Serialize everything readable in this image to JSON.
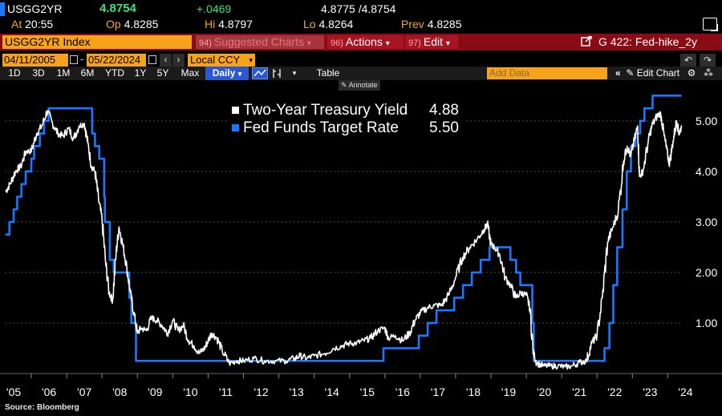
{
  "quote": {
    "ticker": "USGG2YR",
    "last": "4.8754",
    "change": "+.0469",
    "bid_ask": "4.8775 /4.8754",
    "time_label": "At",
    "time": "20:55",
    "open_label": "Op",
    "open": "4.8285",
    "high_label": "Hi",
    "high": "4.8797",
    "low_label": "Lo",
    "low": "4.8264",
    "prev_label": "Prev",
    "prev": "4.8285"
  },
  "command_bar": {
    "security": "USGG2YR Index",
    "suggested_num": "94)",
    "suggested": "Suggested Charts",
    "actions_num": "96)",
    "actions": "Actions",
    "edit_num": "97)",
    "edit": "Edit",
    "chart_name": "G 422: Fed-hike_2y"
  },
  "date_bar": {
    "start_date": "04/11/2005",
    "end_date": "05/22/2024",
    "currency": "Local CCY"
  },
  "period_bar": {
    "periods": [
      "1D",
      "3D",
      "1M",
      "6M",
      "YTD",
      "1Y",
      "5Y",
      "Max"
    ],
    "frequency": "Daily",
    "table_label": "Table",
    "add_data_placeholder": "Add Data",
    "edit_chart_label": "Edit Chart",
    "annotate_label": "Annotate"
  },
  "colors": {
    "yield_line": "#ffffff",
    "fed_funds_line": "#1a78ff",
    "accent_orange": "#f6a21a",
    "command_red": "#8b0b14",
    "up_green": "#3be37a"
  },
  "chart_data": {
    "type": "line",
    "title": "",
    "xlabel": "",
    "ylabel": "",
    "x_ticks": [
      "'05",
      "'06",
      "'07",
      "'08",
      "'09",
      "'10",
      "'11",
      "'12",
      "'13",
      "'14",
      "'15",
      "'16",
      "'17",
      "'18",
      "'19",
      "'20",
      "'21",
      "'22",
      "'23",
      "'24"
    ],
    "y_ticks": [
      "1.00",
      "2.00",
      "3.00",
      "4.00",
      "5.00"
    ],
    "ylim": [
      0.0,
      5.6
    ],
    "xlim": [
      2005.25,
      2024.4
    ],
    "grid": "horizontal-dashed",
    "legend_position": "top-center",
    "series": [
      {
        "name": "Two-Year Treasury Yield",
        "last_value": "4.88",
        "color": "#ffffff",
        "points": [
          [
            2005.27,
            3.6
          ],
          [
            2005.4,
            3.75
          ],
          [
            2005.55,
            4.0
          ],
          [
            2005.7,
            4.1
          ],
          [
            2005.85,
            4.4
          ],
          [
            2006.0,
            4.4
          ],
          [
            2006.15,
            4.75
          ],
          [
            2006.3,
            4.9
          ],
          [
            2006.45,
            5.2
          ],
          [
            2006.6,
            4.95
          ],
          [
            2006.75,
            4.75
          ],
          [
            2006.9,
            4.7
          ],
          [
            2007.05,
            4.85
          ],
          [
            2007.2,
            4.65
          ],
          [
            2007.35,
            4.9
          ],
          [
            2007.5,
            4.95
          ],
          [
            2007.6,
            4.55
          ],
          [
            2007.7,
            4.1
          ],
          [
            2007.8,
            4.0
          ],
          [
            2007.9,
            3.45
          ],
          [
            2008.0,
            3.05
          ],
          [
            2008.1,
            2.2
          ],
          [
            2008.2,
            1.6
          ],
          [
            2008.3,
            1.45
          ],
          [
            2008.4,
            2.4
          ],
          [
            2008.48,
            2.9
          ],
          [
            2008.6,
            2.5
          ],
          [
            2008.7,
            2.1
          ],
          [
            2008.8,
            1.6
          ],
          [
            2008.9,
            1.2
          ],
          [
            2009.0,
            0.8
          ],
          [
            2009.1,
            0.9
          ],
          [
            2009.25,
            0.85
          ],
          [
            2009.4,
            1.1
          ],
          [
            2009.55,
            1.05
          ],
          [
            2009.7,
            0.95
          ],
          [
            2009.85,
            0.8
          ],
          [
            2010.0,
            1.05
          ],
          [
            2010.15,
            0.85
          ],
          [
            2010.3,
            0.95
          ],
          [
            2010.45,
            0.65
          ],
          [
            2010.6,
            0.55
          ],
          [
            2010.75,
            0.4
          ],
          [
            2010.9,
            0.5
          ],
          [
            2011.0,
            0.65
          ],
          [
            2011.1,
            0.8
          ],
          [
            2011.25,
            0.7
          ],
          [
            2011.4,
            0.45
          ],
          [
            2011.6,
            0.2
          ],
          [
            2011.8,
            0.25
          ],
          [
            2012.0,
            0.25
          ],
          [
            2012.3,
            0.3
          ],
          [
            2012.6,
            0.25
          ],
          [
            2012.9,
            0.25
          ],
          [
            2013.2,
            0.25
          ],
          [
            2013.45,
            0.3
          ],
          [
            2013.6,
            0.35
          ],
          [
            2013.8,
            0.3
          ],
          [
            2014.0,
            0.35
          ],
          [
            2014.3,
            0.4
          ],
          [
            2014.55,
            0.5
          ],
          [
            2014.8,
            0.55
          ],
          [
            2015.0,
            0.6
          ],
          [
            2015.2,
            0.6
          ],
          [
            2015.4,
            0.65
          ],
          [
            2015.6,
            0.7
          ],
          [
            2015.8,
            0.85
          ],
          [
            2016.0,
            0.9
          ],
          [
            2016.1,
            0.7
          ],
          [
            2016.3,
            0.75
          ],
          [
            2016.5,
            0.65
          ],
          [
            2016.7,
            0.8
          ],
          [
            2016.85,
            1.05
          ],
          [
            2017.0,
            1.2
          ],
          [
            2017.2,
            1.3
          ],
          [
            2017.4,
            1.35
          ],
          [
            2017.6,
            1.35
          ],
          [
            2017.8,
            1.55
          ],
          [
            2018.0,
            1.9
          ],
          [
            2018.2,
            2.3
          ],
          [
            2018.4,
            2.5
          ],
          [
            2018.6,
            2.65
          ],
          [
            2018.8,
            2.85
          ],
          [
            2018.9,
            2.95
          ],
          [
            2019.0,
            2.55
          ],
          [
            2019.1,
            2.5
          ],
          [
            2019.25,
            2.35
          ],
          [
            2019.4,
            1.9
          ],
          [
            2019.55,
            1.75
          ],
          [
            2019.7,
            1.5
          ],
          [
            2019.85,
            1.6
          ],
          [
            2020.0,
            1.55
          ],
          [
            2020.1,
            1.3
          ],
          [
            2020.2,
            0.4
          ],
          [
            2020.3,
            0.2
          ],
          [
            2020.5,
            0.15
          ],
          [
            2020.7,
            0.15
          ],
          [
            2020.9,
            0.15
          ],
          [
            2021.1,
            0.13
          ],
          [
            2021.3,
            0.15
          ],
          [
            2021.5,
            0.22
          ],
          [
            2021.7,
            0.25
          ],
          [
            2021.85,
            0.6
          ],
          [
            2022.0,
            0.75
          ],
          [
            2022.15,
            1.5
          ],
          [
            2022.3,
            2.6
          ],
          [
            2022.45,
            2.9
          ],
          [
            2022.6,
            3.2
          ],
          [
            2022.75,
            4.2
          ],
          [
            2022.85,
            4.5
          ],
          [
            2022.95,
            4.3
          ],
          [
            2023.05,
            4.6
          ],
          [
            2023.15,
            4.9
          ],
          [
            2023.2,
            3.9
          ],
          [
            2023.3,
            4.0
          ],
          [
            2023.45,
            4.6
          ],
          [
            2023.55,
            4.9
          ],
          [
            2023.7,
            5.1
          ],
          [
            2023.8,
            5.15
          ],
          [
            2023.9,
            4.7
          ],
          [
            2024.0,
            4.3
          ],
          [
            2024.05,
            4.15
          ],
          [
            2024.15,
            4.6
          ],
          [
            2024.25,
            5.0
          ],
          [
            2024.32,
            4.75
          ],
          [
            2024.39,
            4.88
          ]
        ]
      },
      {
        "name": "Fed Funds Target Rate",
        "last_value": "5.50",
        "color": "#1a78ff",
        "points": [
          [
            2005.27,
            2.75
          ],
          [
            2005.38,
            3.0
          ],
          [
            2005.5,
            3.25
          ],
          [
            2005.6,
            3.5
          ],
          [
            2005.72,
            3.75
          ],
          [
            2005.84,
            4.0
          ],
          [
            2006.0,
            4.25
          ],
          [
            2006.08,
            4.5
          ],
          [
            2006.24,
            4.75
          ],
          [
            2006.36,
            5.0
          ],
          [
            2006.49,
            5.25
          ],
          [
            2007.62,
            5.25
          ],
          [
            2007.72,
            4.75
          ],
          [
            2007.8,
            4.5
          ],
          [
            2007.92,
            4.25
          ],
          [
            2008.06,
            3.5
          ],
          [
            2008.08,
            3.0
          ],
          [
            2008.22,
            2.25
          ],
          [
            2008.33,
            2.0
          ],
          [
            2008.77,
            1.5
          ],
          [
            2008.83,
            1.0
          ],
          [
            2008.96,
            0.25
          ],
          [
            2015.96,
            0.25
          ],
          [
            2015.96,
            0.5
          ],
          [
            2016.96,
            0.5
          ],
          [
            2016.96,
            0.75
          ],
          [
            2017.21,
            1.0
          ],
          [
            2017.46,
            1.25
          ],
          [
            2017.96,
            1.5
          ],
          [
            2018.21,
            1.75
          ],
          [
            2018.46,
            2.0
          ],
          [
            2018.71,
            2.25
          ],
          [
            2018.96,
            2.5
          ],
          [
            2019.55,
            2.5
          ],
          [
            2019.55,
            2.25
          ],
          [
            2019.71,
            2.0
          ],
          [
            2019.83,
            1.75
          ],
          [
            2020.17,
            1.0
          ],
          [
            2020.21,
            0.25
          ],
          [
            2022.21,
            0.25
          ],
          [
            2022.21,
            0.5
          ],
          [
            2022.35,
            1.0
          ],
          [
            2022.46,
            1.75
          ],
          [
            2022.57,
            2.5
          ],
          [
            2022.72,
            3.25
          ],
          [
            2022.84,
            4.0
          ],
          [
            2022.96,
            4.5
          ],
          [
            2023.09,
            4.75
          ],
          [
            2023.22,
            5.0
          ],
          [
            2023.34,
            5.25
          ],
          [
            2023.57,
            5.5
          ],
          [
            2024.39,
            5.5
          ]
        ]
      }
    ]
  },
  "source_label": "Source: Bloomberg"
}
